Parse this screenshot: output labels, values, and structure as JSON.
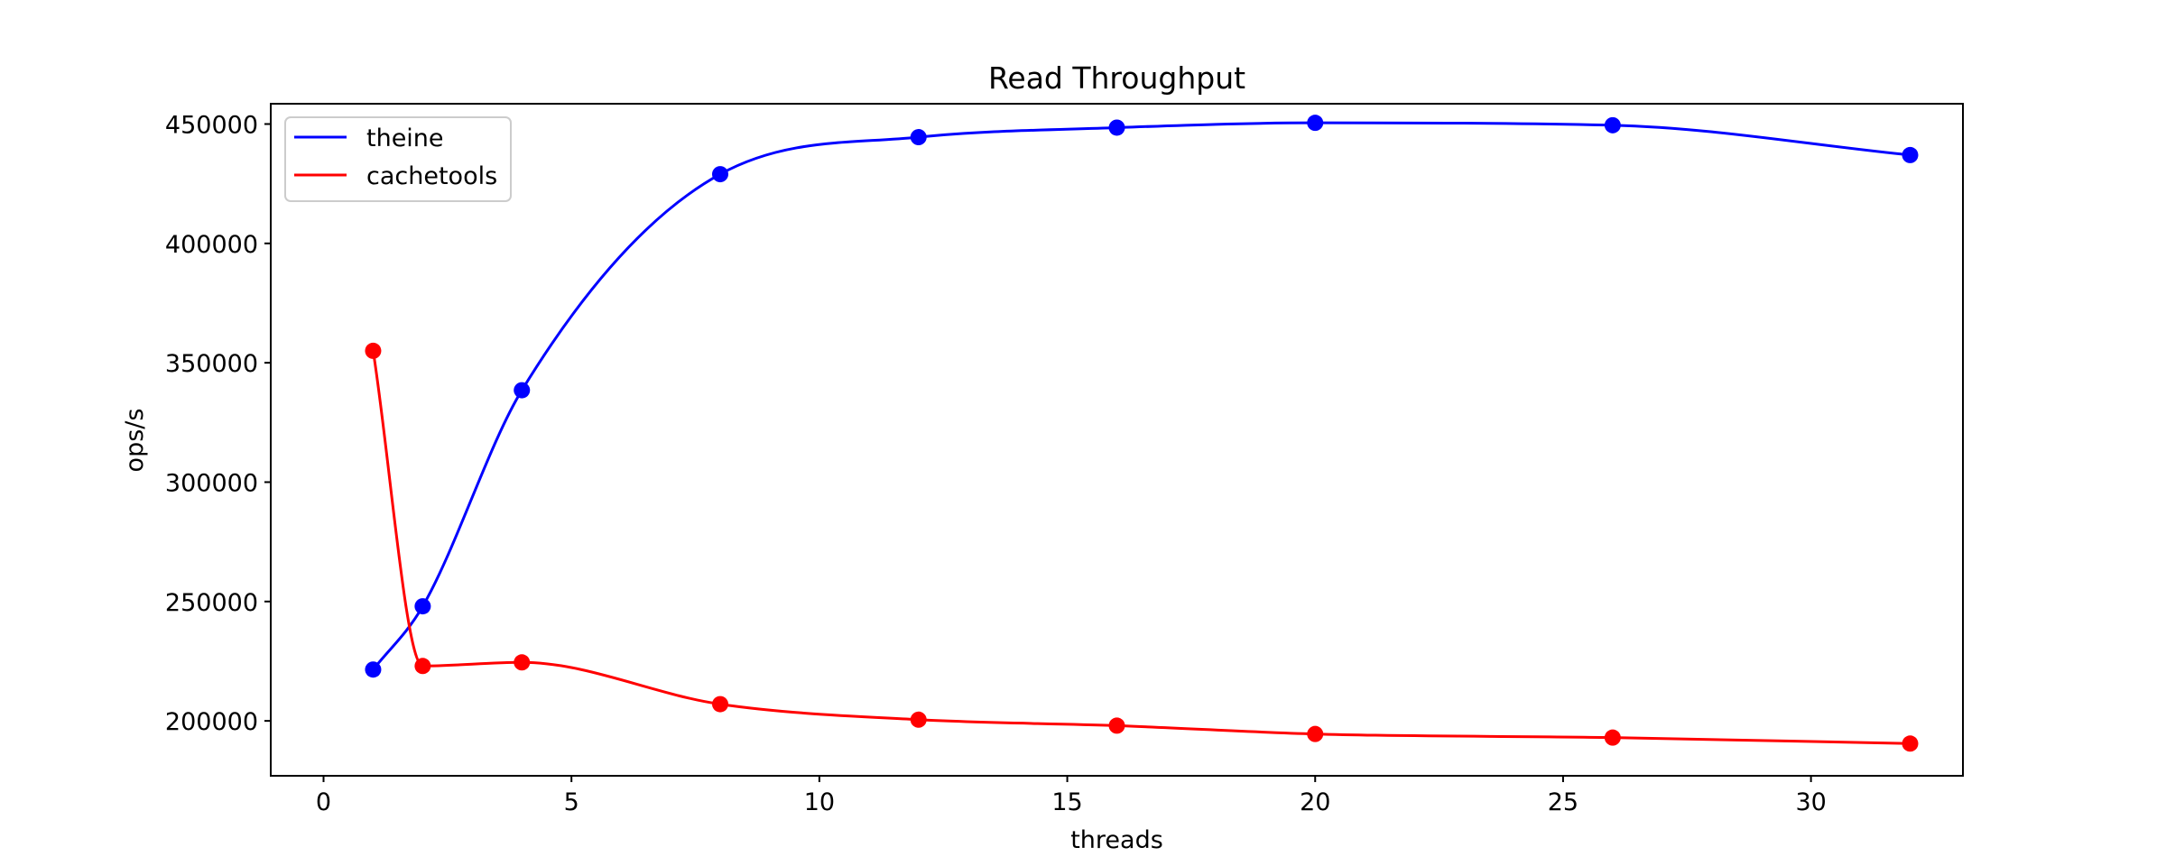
{
  "chart_data": {
    "type": "line",
    "title": "Read Throughput",
    "xlabel": "threads",
    "ylabel": "ops/s",
    "xlim": [
      -1.065,
      33.065
    ],
    "ylim": [
      177000,
      458500
    ],
    "xticks": [
      0,
      5,
      10,
      15,
      20,
      25,
      30
    ],
    "yticks": [
      200000,
      250000,
      300000,
      350000,
      400000,
      450000
    ],
    "grid": false,
    "legend": "top-left",
    "series": [
      {
        "name": "theine",
        "color": "#0000ff",
        "x": [
          1,
          2,
          4,
          8,
          12,
          16,
          20,
          26,
          32
        ],
        "y": [
          221500,
          248000,
          338500,
          429000,
          444500,
          448500,
          450500,
          449500,
          437000
        ]
      },
      {
        "name": "cachetools",
        "color": "#ff0000",
        "x": [
          1,
          2,
          4,
          8,
          12,
          16,
          20,
          26,
          32
        ],
        "y": [
          355000,
          223000,
          224500,
          207000,
          200500,
          198000,
          194500,
          193000,
          190500
        ]
      }
    ]
  }
}
